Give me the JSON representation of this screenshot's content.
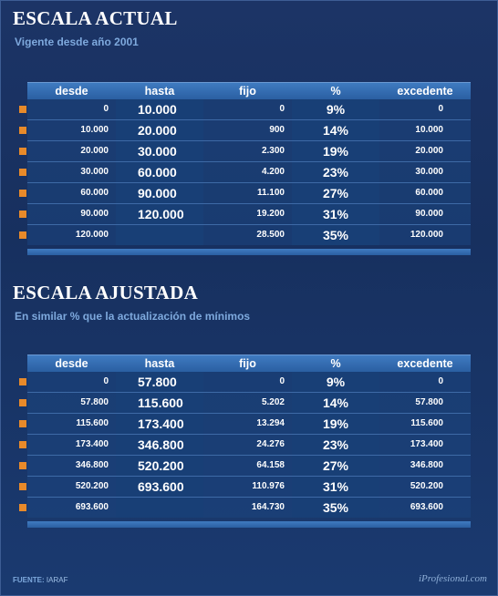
{
  "colors": {
    "accent_orange": "#e88a2a",
    "header_blue": "#2f6aac",
    "background": "#1a3466"
  },
  "headers": [
    "desde",
    "hasta",
    "fijo",
    "%",
    "excedente"
  ],
  "actual": {
    "title": "ESCALA ACTUAL",
    "subtitle": "Vigente desde año 2001",
    "rows": [
      {
        "desde": "0",
        "hasta": "10.000",
        "fijo": "0",
        "pct": "9%",
        "excedente": "0"
      },
      {
        "desde": "10.000",
        "hasta": "20.000",
        "fijo": "900",
        "pct": "14%",
        "excedente": "10.000"
      },
      {
        "desde": "20.000",
        "hasta": "30.000",
        "fijo": "2.300",
        "pct": "19%",
        "excedente": "20.000"
      },
      {
        "desde": "30.000",
        "hasta": "60.000",
        "fijo": "4.200",
        "pct": "23%",
        "excedente": "30.000"
      },
      {
        "desde": "60.000",
        "hasta": "90.000",
        "fijo": "11.100",
        "pct": "27%",
        "excedente": "60.000"
      },
      {
        "desde": "90.000",
        "hasta": "120.000",
        "fijo": "19.200",
        "pct": "31%",
        "excedente": "90.000"
      },
      {
        "desde": "120.000",
        "hasta": "",
        "fijo": "28.500",
        "pct": "35%",
        "excedente": "120.000"
      }
    ]
  },
  "ajustada": {
    "title": "ESCALA AJUSTADA",
    "subtitle": "En similar % que la actualización de mínimos",
    "rows": [
      {
        "desde": "0",
        "hasta": "57.800",
        "fijo": "0",
        "pct": "9%",
        "excedente": "0"
      },
      {
        "desde": "57.800",
        "hasta": "115.600",
        "fijo": "5.202",
        "pct": "14%",
        "excedente": "57.800"
      },
      {
        "desde": "115.600",
        "hasta": "173.400",
        "fijo": "13.294",
        "pct": "19%",
        "excedente": "115.600"
      },
      {
        "desde": "173.400",
        "hasta": "346.800",
        "fijo": "24.276",
        "pct": "23%",
        "excedente": "173.400"
      },
      {
        "desde": "346.800",
        "hasta": "520.200",
        "fijo": "64.158",
        "pct": "27%",
        "excedente": "346.800"
      },
      {
        "desde": "520.200",
        "hasta": "693.600",
        "fijo": "110.976",
        "pct": "31%",
        "excedente": "520.200"
      },
      {
        "desde": "693.600",
        "hasta": "",
        "fijo": "164.730",
        "pct": "35%",
        "excedente": "693.600"
      }
    ]
  },
  "footer": {
    "source_label": "FUENTE:",
    "source_value": "IARAF",
    "brand": "iProfesional.com"
  }
}
